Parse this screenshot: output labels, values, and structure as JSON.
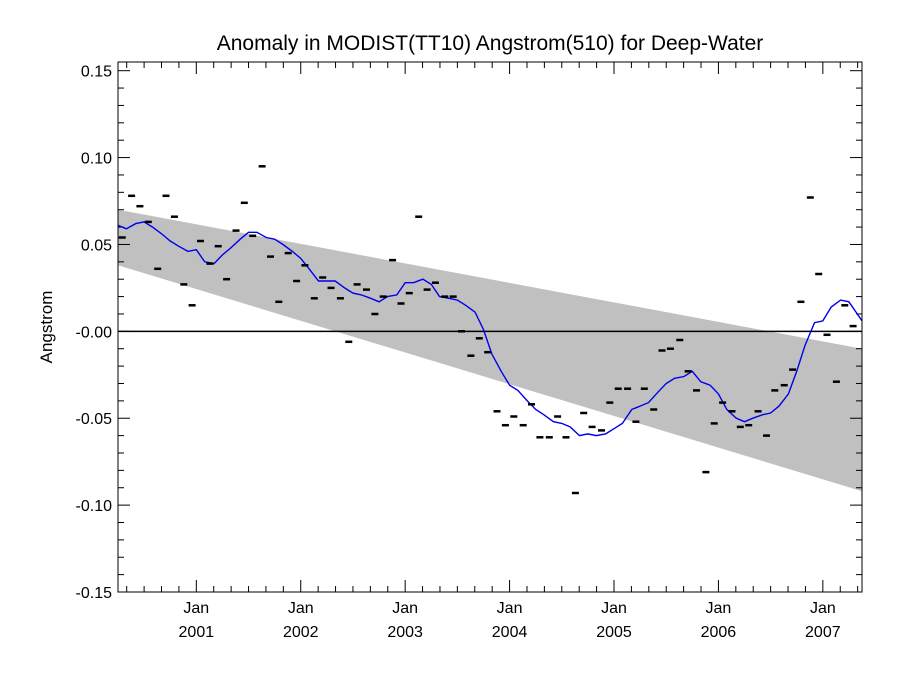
{
  "chart_data": {
    "type": "line",
    "title": "Anomaly in MODIST(TT10) Angstrom(510) for Deep-Water",
    "ylabel": "Angstrom",
    "xlabel": "",
    "xlim": [
      2000.25,
      2007.375
    ],
    "ylim": [
      -0.15,
      0.155
    ],
    "y_ticks": [
      {
        "value": 0.15,
        "label": "0.15"
      },
      {
        "value": 0.1,
        "label": "0.10"
      },
      {
        "value": 0.05,
        "label": "0.05"
      },
      {
        "value": 0.0,
        "label": "-0.00"
      },
      {
        "value": -0.05,
        "label": "-0.05"
      },
      {
        "value": -0.1,
        "label": "-0.10"
      },
      {
        "value": -0.15,
        "label": "-0.15"
      }
    ],
    "x_ticks": [
      {
        "value": 2001.0,
        "month": "Jan",
        "year": "2001"
      },
      {
        "value": 2002.0,
        "month": "Jan",
        "year": "2002"
      },
      {
        "value": 2003.0,
        "month": "Jan",
        "year": "2003"
      },
      {
        "value": 2004.0,
        "month": "Jan",
        "year": "2004"
      },
      {
        "value": 2005.0,
        "month": "Jan",
        "year": "2005"
      },
      {
        "value": 2006.0,
        "month": "Jan",
        "year": "2006"
      },
      {
        "value": 2007.0,
        "month": "Jan",
        "year": "2007"
      }
    ],
    "confidence_band": {
      "color": "#c0c0c0",
      "x": [
        2000.25,
        2007.375
      ],
      "upper": [
        0.07,
        -0.01
      ],
      "lower": [
        0.038,
        -0.092
      ]
    },
    "zero_line": {
      "y": 0.0,
      "color": "#000000"
    },
    "series": [
      {
        "style": "markers",
        "marker": "dash",
        "color": "#000000",
        "x": [
          2000.29,
          2000.38,
          2000.46,
          2000.54,
          2000.63,
          2000.71,
          2000.79,
          2000.88,
          2000.96,
          2001.04,
          2001.13,
          2001.21,
          2001.29,
          2001.38,
          2001.46,
          2001.54,
          2001.63,
          2001.71,
          2001.79,
          2001.88,
          2001.96,
          2002.04,
          2002.13,
          2002.21,
          2002.29,
          2002.38,
          2002.46,
          2002.54,
          2002.63,
          2002.71,
          2002.79,
          2002.88,
          2002.96,
          2003.04,
          2003.13,
          2003.21,
          2003.29,
          2003.38,
          2003.46,
          2003.54,
          2003.63,
          2003.71,
          2003.79,
          2003.88,
          2003.96,
          2004.04,
          2004.13,
          2004.21,
          2004.29,
          2004.38,
          2004.46,
          2004.54,
          2004.63,
          2004.71,
          2004.79,
          2004.88,
          2004.96,
          2005.04,
          2005.13,
          2005.21,
          2005.29,
          2005.38,
          2005.46,
          2005.54,
          2005.63,
          2005.71,
          2005.79,
          2005.88,
          2005.96,
          2006.04,
          2006.13,
          2006.21,
          2006.29,
          2006.38,
          2006.46,
          2006.54,
          2006.63,
          2006.71,
          2006.79,
          2006.88,
          2006.96,
          2007.04,
          2007.13,
          2007.21,
          2007.29,
          2007.38
        ],
        "y": [
          0.054,
          0.078,
          0.072,
          0.063,
          0.036,
          0.078,
          0.066,
          0.027,
          0.015,
          0.052,
          0.039,
          0.049,
          0.03,
          0.058,
          0.074,
          0.055,
          0.095,
          0.043,
          0.017,
          0.045,
          0.029,
          0.038,
          0.019,
          0.031,
          0.025,
          0.019,
          -0.006,
          0.027,
          0.024,
          0.01,
          0.02,
          0.041,
          0.016,
          0.022,
          0.066,
          0.024,
          0.028,
          0.02,
          0.02,
          0.0,
          -0.014,
          -0.004,
          -0.012,
          -0.046,
          -0.054,
          -0.049,
          -0.054,
          -0.042,
          -0.061,
          -0.061,
          -0.049,
          -0.061,
          -0.093,
          -0.047,
          -0.055,
          -0.057,
          -0.041,
          -0.033,
          -0.033,
          -0.052,
          -0.033,
          -0.045,
          -0.011,
          -0.01,
          -0.005,
          -0.023,
          -0.034,
          -0.081,
          -0.053,
          -0.041,
          -0.046,
          -0.055,
          -0.054,
          -0.046,
          -0.06,
          -0.034,
          -0.031,
          -0.022,
          0.017,
          0.077,
          0.033,
          -0.002,
          -0.029,
          0.015,
          0.003,
          0.035
        ]
      },
      {
        "style": "line",
        "color": "#0000ee",
        "x": [
          2000.25,
          2000.33,
          2000.42,
          2000.5,
          2000.58,
          2000.67,
          2000.75,
          2000.83,
          2000.92,
          2001.0,
          2001.08,
          2001.17,
          2001.25,
          2001.33,
          2001.42,
          2001.5,
          2001.58,
          2001.67,
          2001.75,
          2001.83,
          2001.92,
          2002.0,
          2002.08,
          2002.17,
          2002.25,
          2002.33,
          2002.42,
          2002.5,
          2002.58,
          2002.67,
          2002.75,
          2002.83,
          2002.92,
          2003.0,
          2003.08,
          2003.17,
          2003.25,
          2003.33,
          2003.42,
          2003.5,
          2003.58,
          2003.67,
          2003.75,
          2003.83,
          2003.92,
          2004.0,
          2004.08,
          2004.17,
          2004.25,
          2004.33,
          2004.42,
          2004.5,
          2004.58,
          2004.67,
          2004.75,
          2004.83,
          2004.92,
          2005.0,
          2005.08,
          2005.17,
          2005.25,
          2005.33,
          2005.42,
          2005.5,
          2005.58,
          2005.67,
          2005.75,
          2005.83,
          2005.92,
          2006.0,
          2006.08,
          2006.17,
          2006.25,
          2006.33,
          2006.42,
          2006.5,
          2006.58,
          2006.67,
          2006.75,
          2006.83,
          2006.92,
          2007.0,
          2007.08,
          2007.17,
          2007.25,
          2007.33,
          2007.375
        ],
        "y": [
          0.061,
          0.059,
          0.062,
          0.063,
          0.06,
          0.056,
          0.052,
          0.049,
          0.046,
          0.047,
          0.04,
          0.039,
          0.044,
          0.048,
          0.053,
          0.057,
          0.057,
          0.054,
          0.053,
          0.05,
          0.046,
          0.042,
          0.036,
          0.029,
          0.029,
          0.029,
          0.025,
          0.022,
          0.021,
          0.019,
          0.017,
          0.02,
          0.021,
          0.028,
          0.028,
          0.03,
          0.027,
          0.02,
          0.019,
          0.018,
          0.015,
          0.011,
          0.001,
          -0.013,
          -0.023,
          -0.031,
          -0.034,
          -0.04,
          -0.045,
          -0.048,
          -0.052,
          -0.053,
          -0.055,
          -0.06,
          -0.059,
          -0.06,
          -0.059,
          -0.056,
          -0.053,
          -0.045,
          -0.043,
          -0.041,
          -0.035,
          -0.03,
          -0.027,
          -0.026,
          -0.023,
          -0.029,
          -0.031,
          -0.036,
          -0.045,
          -0.05,
          -0.052,
          -0.05,
          -0.048,
          -0.047,
          -0.043,
          -0.036,
          -0.023,
          -0.008,
          0.005,
          0.006,
          0.014,
          0.018,
          0.017,
          0.01,
          0.006
        ]
      }
    ]
  }
}
